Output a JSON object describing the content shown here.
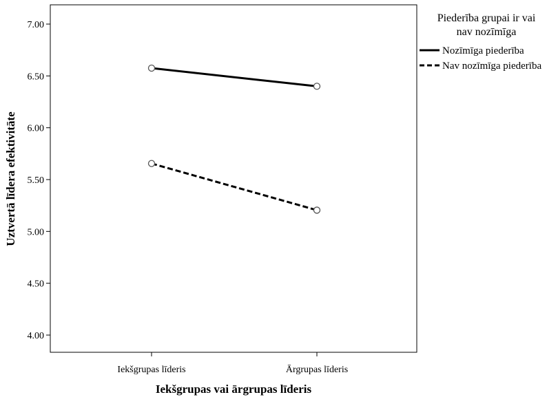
{
  "chart_data": {
    "type": "line",
    "categories": [
      "Iekšgrupas līderis",
      "Ārgrupas līderis"
    ],
    "series": [
      {
        "name": "Nozīmīga piederība",
        "values": [
          6.575,
          6.4
        ],
        "line_style": "solid",
        "color": "#000000"
      },
      {
        "name": "Nav nozīmīga piederība",
        "values": [
          5.655,
          5.205
        ],
        "line_style": "dashed",
        "color": "#000000"
      }
    ],
    "xlabel": "Iekšgrupas vai ārgrupas līderis",
    "ylabel": "Uztvertā līdera efektivitāte",
    "ylim": [
      4.0,
      7.0
    ],
    "yticks": [
      "4.00",
      "4.50",
      "5.00",
      "5.50",
      "6.00",
      "6.50",
      "7.00"
    ],
    "legend": {
      "title_lines": [
        "Piederība grupai ir vai",
        "nav nozīmīga"
      ],
      "placement": "right"
    },
    "grid": false,
    "marker": "open-circle"
  }
}
